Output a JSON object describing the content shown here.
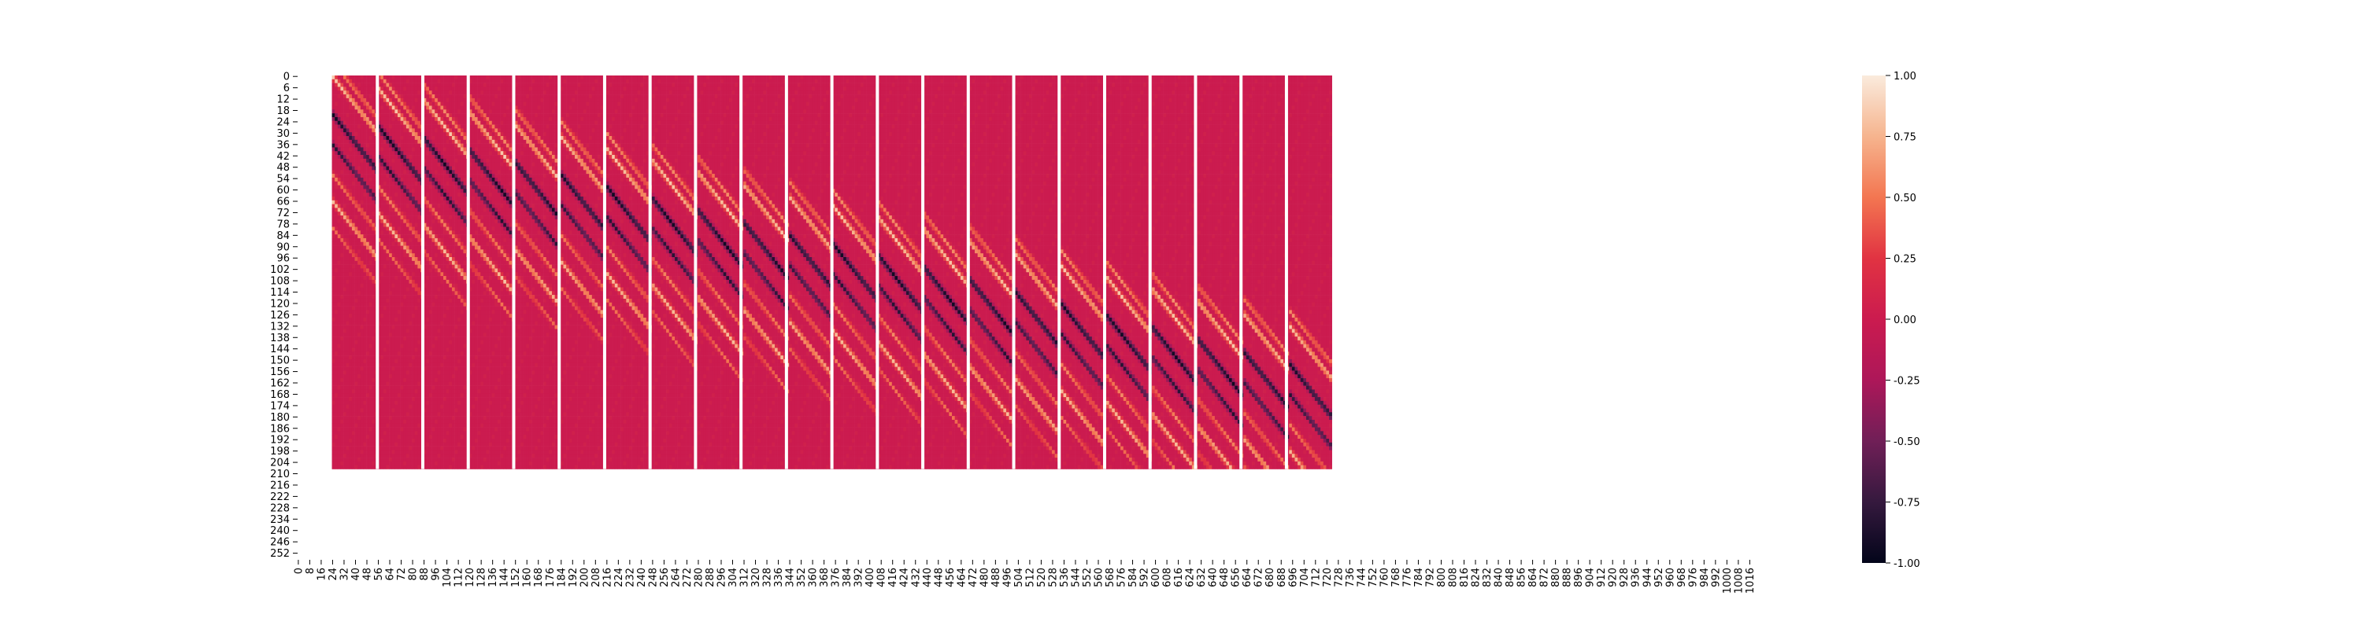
{
  "chart_data": {
    "type": "heatmap",
    "title": "",
    "xlabel": "",
    "ylabel": "",
    "x_ticks": [
      0,
      8,
      16,
      24,
      32,
      40,
      48,
      56,
      64,
      72,
      80,
      88,
      96,
      104,
      112,
      120,
      128,
      136,
      144,
      152,
      160,
      168,
      176,
      184,
      192,
      200,
      208,
      216,
      224,
      232,
      240,
      248,
      256,
      264,
      272,
      280,
      288,
      296,
      304,
      312,
      320,
      328,
      336,
      344,
      352,
      360,
      368,
      376,
      384,
      392,
      400,
      408,
      416,
      424,
      432,
      440,
      448,
      456,
      464,
      472,
      480,
      488,
      496,
      504,
      512,
      520,
      528,
      536,
      544,
      552,
      560,
      568,
      576,
      584,
      592,
      600,
      608,
      616,
      624,
      632,
      640,
      648,
      656,
      664,
      672,
      680,
      688,
      696,
      704,
      712,
      720,
      728,
      736,
      744,
      752,
      760,
      768,
      776,
      784,
      792,
      800,
      808,
      816,
      824,
      832,
      840,
      848,
      856,
      864,
      872,
      880,
      888,
      896,
      904,
      912,
      920,
      928,
      936,
      944,
      952,
      960,
      968,
      976,
      984,
      992,
      1000,
      1008,
      1016
    ],
    "y_ticks": [
      0,
      6,
      12,
      18,
      24,
      30,
      36,
      42,
      48,
      54,
      60,
      66,
      72,
      78,
      84,
      90,
      96,
      102,
      108,
      114,
      120,
      126,
      132,
      138,
      144,
      150,
      156,
      162,
      168,
      174,
      180,
      186,
      192,
      198,
      204,
      210,
      216,
      222,
      228,
      234,
      240,
      246,
      252
    ],
    "x_range": [
      0,
      1024
    ],
    "y_range": [
      0,
      256
    ],
    "filled_rows": [
      0,
      208
    ],
    "filled_cols": [
      24,
      724
    ],
    "num_blocks": 22,
    "block_width_cols": 32,
    "column_separator_color": "#ffffff",
    "background_value": 0.0,
    "colorbar": {
      "min": -1.0,
      "max": 1.0,
      "ticks": [
        "-1.00",
        "-0.75",
        "-0.50",
        "-0.25",
        "0.00",
        "0.25",
        "0.50",
        "0.75",
        "1.00"
      ],
      "colormap": "rocket"
    },
    "colors": {
      "background_cell": "#cb1b4f",
      "low": "#03051a",
      "high": "#faebdd"
    },
    "pattern": "diagonal bands of positive (light orange) and negative (dark purple) values sweeping from top-left to bottom-right across the column blocks"
  }
}
